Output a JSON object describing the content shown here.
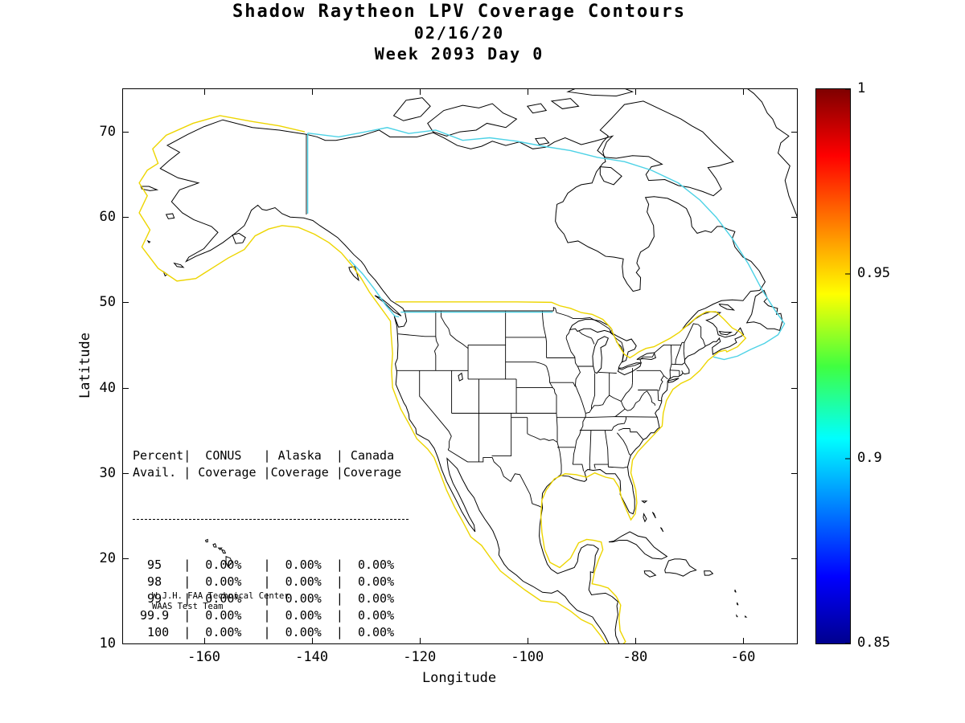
{
  "title": {
    "line1": "Shadow Raytheon LPV Coverage Contours",
    "line2": "02/16/20",
    "line3": "Week 2093 Day 0"
  },
  "axes": {
    "xlabel": "Longitude",
    "ylabel": "Latitude",
    "x_ticks": [
      -160,
      -140,
      -120,
      -100,
      -80,
      -60
    ],
    "y_ticks": [
      10,
      20,
      30,
      40,
      50,
      60,
      70
    ],
    "x_range": [
      -175,
      -50
    ],
    "y_range": [
      10,
      75
    ]
  },
  "colorbar": {
    "min": 0.85,
    "max": 1,
    "tick_values": [
      1,
      0.95,
      0.9,
      0.85
    ],
    "tick_labels": [
      "1",
      "0.95",
      "0.9",
      "0.85"
    ],
    "gradient_colors": [
      "#7F0000",
      "#FF0000",
      "#FFFF00",
      "#40FF40",
      "#00FFFF",
      "#0000FF",
      "#00008F"
    ],
    "gradient_stops": [
      0,
      12,
      37,
      50,
      63,
      88,
      100
    ]
  },
  "coverage_table": {
    "header_rows": [
      [
        "Percent",
        "CONUS",
        "Alaska",
        "Canada"
      ],
      [
        "Avail.",
        "Coverage",
        "Coverage",
        "Coverage"
      ]
    ]
  },
  "credit": {
    "line1": "W.J.H. FAA Technical Center",
    "line2": "WAAS Test Team"
  },
  "colors": {
    "conus_contour": "#EDD500",
    "canada_contour": "#4DD2E6",
    "map_line": "#000000",
    "background": "#FFFFFF"
  },
  "chart_data": {
    "type": "table",
    "title": "Shadow Raytheon LPV Coverage Contours",
    "subtitle": "02/16/20 Week 2093 Day 0",
    "columns": [
      "Percent Avail.",
      "CONUS Coverage",
      "Alaska Coverage",
      "Canada Coverage"
    ],
    "rows": [
      [
        "95",
        "0.00%",
        "0.00%",
        "0.00%"
      ],
      [
        "98",
        "0.00%",
        "0.00%",
        "0.00%"
      ],
      [
        "99",
        "0.00%",
        "0.00%",
        "0.00%"
      ],
      [
        "99.9",
        "0.00%",
        "0.00%",
        "0.00%"
      ],
      [
        "100",
        "0.00%",
        "0.00%",
        "0.00%"
      ]
    ],
    "map": {
      "xlabel": "Longitude",
      "x_range": [
        -175,
        -50
      ],
      "ylabel": "Latitude",
      "y_range": [
        10,
        75
      ],
      "region": "North America"
    },
    "colorbar": {
      "range": [
        0.85,
        1
      ],
      "ticks": [
        1,
        0.95,
        0.9,
        0.85
      ],
      "colormap": "jet"
    }
  }
}
